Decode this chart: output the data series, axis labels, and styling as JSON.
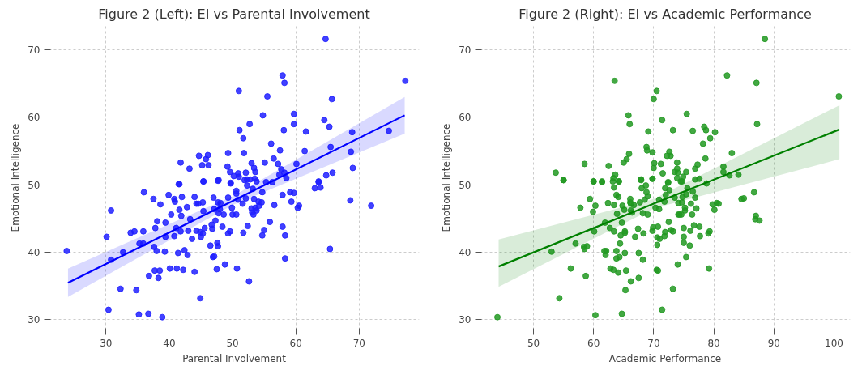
{
  "chart_data": [
    {
      "type": "scatter",
      "title": "Figure 2 (Left): EI vs Parental Involvement",
      "xlabel": "Parental Involvement",
      "ylabel": "Emotional Intelligence",
      "xlim": [
        21,
        79.5
      ],
      "ylim": [
        28.5,
        73.6
      ],
      "xticks": [
        30,
        40,
        50,
        60,
        70
      ],
      "yticks": [
        30,
        40,
        50,
        60,
        70
      ],
      "grid": true,
      "series": [
        {
          "marker": "circle",
          "color": "#2020ff",
          "x": [
            64.7,
            57.9,
            58.2,
            51.0,
            77.3,
            55.5,
            65.7,
            54.8,
            59.7,
            64.5,
            65.3,
            51.1,
            52.7,
            58.1,
            59.7,
            61.6,
            68.9,
            74.7,
            51.7,
            56.1,
            65.5,
            57.5,
            61.4,
            68.7,
            44.7,
            46.1,
            45.8,
            49.3,
            51.8,
            41.8,
            43.2,
            45.2,
            46.2,
            49.2,
            49.6,
            50.2,
            50.9,
            51.0,
            52.1,
            53.0,
            53.4,
            53.6,
            53.5,
            55.1,
            56.5,
            57.2,
            57.7,
            58.2,
            57.4,
            58.5,
            60.1,
            63.6,
            64.8,
            65.8,
            69.0,
            47.7,
            45.4,
            49.7,
            51.9,
            52.3,
            41.5,
            55.3,
            56.3,
            23.8,
            30.1,
            30.8,
            30.8,
            30.4,
            32.3,
            32.7,
            33.9,
            34.5,
            34.8,
            35.2,
            35.3,
            35.9,
            35.9,
            36.0,
            36.7,
            36.8,
            37.5,
            37.6,
            37.7,
            37.8,
            38.0,
            38.1,
            38.3,
            38.5,
            38.6,
            38.9,
            39.3,
            39.4,
            39.4,
            39.9,
            40.1,
            40.3,
            40.8,
            40.9,
            40.8,
            41.1,
            41.2,
            41.4,
            41.6,
            41.6,
            41.8,
            41.9,
            42.0,
            42.2,
            42.4,
            42.8,
            42.9,
            43.0,
            43.3,
            43.6,
            44.0,
            44.0,
            44.3,
            44.3,
            44.6,
            44.9,
            44.9,
            45.0,
            45.3,
            45.3,
            45.4,
            45.4,
            45.6,
            46.5,
            46.7,
            46.8,
            46.9,
            47.1,
            47.0,
            47.1,
            47.3,
            47.6,
            47.7,
            47.5,
            47.8,
            47.7,
            47.8,
            48.0,
            48.1,
            48.4,
            48.6,
            48.8,
            49.3,
            49.3,
            49.6,
            49.7,
            49.9,
            50.0,
            50.6,
            50.6,
            50.6,
            50.7,
            50.9,
            51.7,
            51.6,
            52.1,
            52.3,
            52.4,
            52.6,
            52.8,
            53.0,
            53.1,
            53.2,
            53.3,
            53.4,
            53.6,
            53.8,
            53.8,
            54.1,
            54.2,
            54.6,
            54.7,
            54.7,
            55.0,
            55.9,
            56.6,
            57.9,
            57.9,
            58.3,
            58.3,
            59.1,
            59.3,
            59.7,
            60.3,
            60.5,
            63.0,
            63.9,
            65.4,
            68.6,
            71.9,
            63.6
          ],
          "values": [
            71.6,
            66.2,
            65.1,
            63.9,
            65.4,
            63.1,
            62.7,
            60.3,
            60.5,
            59.6,
            58.6,
            58.1,
            59.0,
            58.1,
            59.0,
            57.9,
            57.8,
            58.0,
            56.9,
            56.1,
            55.6,
            55.1,
            55.0,
            54.9,
            54.3,
            54.4,
            53.8,
            54.7,
            54.7,
            53.3,
            52.4,
            52.9,
            52.9,
            52.7,
            51.9,
            51.3,
            51.7,
            51.2,
            51.8,
            53.2,
            52.5,
            51.9,
            50.9,
            53.3,
            53.9,
            53.1,
            52.3,
            51.8,
            51.5,
            51.0,
            53.1,
            50.4,
            51.4,
            51.8,
            52.5,
            50.6,
            50.5,
            50.3,
            50.7,
            50.8,
            50.1,
            50.4,
            50.4,
            40.2,
            42.3,
            46.2,
            38.9,
            31.5,
            34.6,
            40.0,
            42.9,
            43.1,
            34.4,
            30.8,
            41.3,
            41.3,
            43.1,
            48.9,
            30.9,
            36.5,
            47.9,
            40.8,
            37.3,
            43.6,
            40.2,
            44.6,
            36.2,
            37.3,
            47.1,
            30.4,
            40.1,
            44.4,
            42.3,
            48.5,
            37.6,
            45.6,
            47.9,
            47.5,
            42.4,
            43.6,
            37.6,
            39.9,
            50.1,
            46.3,
            43.1,
            45.4,
            48.2,
            37.4,
            40.3,
            46.7,
            39.6,
            43.2,
            44.9,
            42.0,
            37.1,
            48.2,
            47.2,
            43.2,
            47.2,
            43.0,
            33.2,
            42.3,
            42.8,
            47.4,
            50.5,
            46.1,
            43.6,
            41.0,
            44.1,
            43.5,
            39.3,
            39.4,
            48.1,
            46.4,
            44.7,
            41.4,
            40.9,
            37.5,
            50.7,
            47.4,
            45.8,
            46.4,
            47.3,
            43.8,
            45.6,
            38.2,
            42.8,
            48.1,
            43.1,
            50.2,
            46.6,
            45.6,
            45.6,
            49.1,
            48.7,
            37.6,
            47.8,
            42.9,
            47.2,
            48.0,
            49.9,
            43.9,
            35.7,
            50.8,
            46.5,
            45.9,
            49.4,
            45.6,
            47.9,
            46.6,
            46.2,
            50.5,
            47.5,
            46.9,
            47.4,
            48.9,
            42.5,
            43.3,
            44.5,
            47.0,
            43.8,
            48.5,
            42.5,
            39.1,
            48.9,
            47.5,
            48.8,
            46.6,
            46.9,
            49.5,
            49.6,
            40.5,
            47.7,
            46.9,
            50.5
          ]
        },
        {
          "type": "line",
          "color": "#0000ff",
          "x": [
            24,
            50,
            77.2
          ],
          "values": [
            35.5,
            47.6,
            60.3
          ],
          "lower": [
            33.4,
            47.0,
            57.6
          ],
          "upper": [
            37.6,
            48.3,
            63.0
          ]
        }
      ]
    },
    {
      "type": "scatter",
      "title": "Figure 2 (Right): EI vs Academic Performance",
      "xlabel": "Academic Performance",
      "ylabel": "Emotional Intelligence",
      "xlim": [
        41.1,
        102.7
      ],
      "ylim": [
        28.5,
        73.6
      ],
      "xticks": [
        50,
        60,
        70,
        80,
        90,
        100
      ],
      "yticks": [
        30,
        40,
        50,
        60,
        70
      ],
      "grid": true,
      "series": [
        {
          "marker": "circle",
          "color": "#229922",
          "x": [
            88.5,
            63.5,
            82.2,
            87.1,
            70.5,
            70.0,
            100.8,
            65.8,
            75.5,
            66.0,
            71.4,
            87.2,
            69.1,
            73.2,
            76.5,
            78.4,
            78.7,
            79.4,
            80.2,
            78.2,
            69.8,
            68.8,
            68.9,
            65.9,
            83.0,
            65.5,
            65.0,
            78.6,
            72.6,
            72.2,
            72.8,
            58.5,
            62.5,
            70.1,
            71.2,
            70.0,
            73.9,
            77.3,
            76.9,
            73.9,
            75.4,
            74.0,
            73.5,
            71.5,
            81.6,
            81.6,
            84.1,
            82.6,
            53.7,
            55.0,
            63.6,
            63.3,
            63.2,
            64.2,
            60.0,
            61.4,
            67.9,
            69.8,
            72.4,
            73.9,
            74.5,
            74.9,
            76.9,
            77.6,
            44.0,
            53.0,
            54.3,
            55.0,
            56.2,
            57.0,
            57.8,
            58.4,
            58.5,
            58.7,
            58.9,
            59.4,
            59.9,
            60.1,
            60.3,
            60.0,
            60.3,
            61.4,
            61.9,
            61.8,
            62.1,
            62.0,
            62.4,
            62.7,
            62.8,
            63.3,
            63.4,
            63.4,
            63.4,
            63.8,
            63.8,
            63.8,
            63.9,
            64.1,
            64.2,
            64.3,
            64.1,
            64.4,
            64.5,
            64.7,
            64.7,
            64.8,
            65.1,
            65.2,
            65.2,
            65.2,
            65.3,
            65.4,
            66.1,
            66.1,
            66.2,
            66.2,
            66.2,
            66.4,
            66.7,
            66.9,
            67.4,
            67.5,
            67.5,
            67.7,
            67.9,
            68.0,
            68.2,
            68.2,
            68.3,
            68.5,
            68.7,
            68.8,
            69.0,
            69.0,
            69.8,
            69.8,
            69.9,
            70.3,
            70.5,
            70.6,
            70.6,
            70.7,
            70.7,
            70.9,
            71.0,
            70.9,
            71.4,
            71.8,
            71.8,
            71.9,
            71.9,
            72.0,
            72.4,
            72.5,
            72.6,
            72.9,
            73.2,
            73.2,
            73.5,
            74.0,
            74.1,
            74.1,
            74.3,
            74.6,
            74.7,
            74.7,
            74.8,
            75.0,
            75.0,
            75.0,
            75.2,
            75.2,
            75.4,
            75.4,
            75.6,
            76.0,
            76.1,
            76.2,
            76.4,
            76.5,
            76.7,
            76.9,
            77.1,
            77.6,
            77.7,
            79.2,
            79.1,
            79.3,
            78.8,
            79.8,
            80.1,
            80.5,
            80.8,
            84.6,
            85.0,
            86.7,
            87.0,
            86.9,
            87.6
          ],
          "values": [
            71.6,
            65.4,
            66.2,
            65.1,
            63.9,
            62.7,
            63.1,
            60.3,
            60.5,
            59.0,
            59.6,
            59.0,
            57.9,
            58.1,
            58.0,
            58.6,
            58.1,
            56.9,
            57.8,
            56.1,
            54.8,
            55.6,
            55.1,
            54.6,
            54.7,
            53.8,
            53.3,
            53.9,
            54.9,
            54.3,
            54.3,
            53.1,
            52.8,
            53.2,
            53.1,
            52.5,
            53.3,
            53.0,
            52.4,
            52.4,
            51.9,
            51.8,
            51.9,
            51.7,
            52.7,
            51.9,
            51.5,
            51.4,
            51.8,
            50.7,
            51.5,
            51.0,
            50.5,
            50.5,
            50.5,
            50.4,
            50.7,
            50.9,
            50.3,
            51.0,
            50.5,
            51.2,
            50.8,
            50.9,
            30.4,
            40.1,
            33.2,
            50.7,
            37.6,
            41.3,
            46.6,
            40.8,
            40.5,
            36.5,
            40.9,
            47.9,
            46.0,
            43.1,
            46.9,
            50.5,
            30.7,
            50.5,
            44.4,
            40.2,
            40.2,
            39.6,
            47.3,
            43.6,
            37.6,
            37.4,
            47.0,
            49.6,
            43.1,
            48.5,
            40.2,
            39.1,
            45.7,
            48.2,
            50.5,
            39.3,
            37.0,
            41.3,
            42.5,
            30.9,
            44.4,
            46.9,
            46.3,
            43.1,
            39.9,
            42.9,
            34.4,
            37.3,
            47.9,
            47.4,
            47.2,
            35.7,
            46.2,
            45.9,
            47.0,
            42.3,
            43.5,
            36.2,
            39.9,
            47.4,
            50.8,
            49.5,
            38.9,
            45.8,
            42.8,
            47.8,
            49.9,
            48.9,
            48.3,
            45.6,
            50.9,
            43.2,
            43.7,
            46.6,
            37.4,
            42.2,
            41.1,
            43.8,
            37.3,
            46.4,
            42.0,
            47.8,
            31.5,
            42.4,
            47.5,
            43.0,
            49.5,
            48.5,
            50.4,
            44.5,
            49.2,
            43.3,
            43.1,
            34.6,
            48.1,
            38.2,
            45.6,
            47.3,
            45.6,
            45.6,
            50.5,
            47.4,
            48.2,
            42.3,
            43.6,
            41.4,
            46.2,
            46.6,
            39.3,
            48.6,
            49.5,
            41.0,
            43.2,
            47.2,
            45.6,
            49.0,
            44.0,
            48.1,
            46.5,
            43.8,
            42.4,
            37.6,
            42.8,
            43.1,
            50.2,
            47.1,
            46.3,
            47.3,
            47.2,
            47.9,
            48.0,
            48.9,
            45.4,
            44.9,
            44.7
          ]
        },
        {
          "type": "line",
          "color": "#008000",
          "x": [
            44.2,
            70,
            100.9
          ],
          "values": [
            37.9,
            47.2,
            58.2
          ],
          "lower": [
            34.9,
            46.5,
            53.8
          ],
          "upper": [
            41.9,
            47.9,
            61.8
          ]
        }
      ]
    }
  ]
}
